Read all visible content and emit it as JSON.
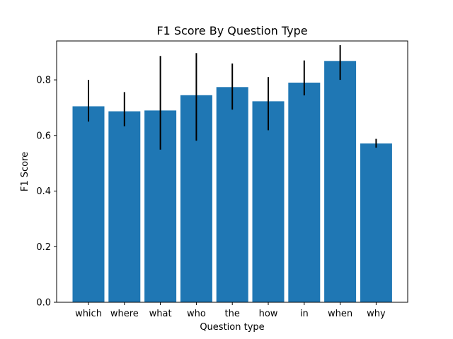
{
  "chart_data": {
    "type": "bar",
    "title": "F1 Score By Question Type",
    "xlabel": "Question type",
    "ylabel": "F1 Score",
    "categories": [
      "which",
      "where",
      "what",
      "who",
      "the",
      "how",
      "in",
      "when",
      "why"
    ],
    "values": [
      0.705,
      0.687,
      0.69,
      0.745,
      0.774,
      0.723,
      0.79,
      0.868,
      0.571
    ],
    "error_low": [
      0.65,
      0.633,
      0.549,
      0.581,
      0.693,
      0.619,
      0.744,
      0.8,
      0.556
    ],
    "error_high": [
      0.8,
      0.756,
      0.886,
      0.896,
      0.859,
      0.81,
      0.87,
      0.925,
      0.588
    ],
    "ylim": [
      0,
      0.94
    ],
    "yticks": [
      0.0,
      0.2,
      0.4,
      0.6,
      0.8
    ],
    "ytick_labels": [
      "0.0",
      "0.2",
      "0.4",
      "0.6",
      "0.8"
    ],
    "grid": false,
    "legend": "none",
    "colors": {
      "bar": "#1f77b4",
      "error_bar": "#000000",
      "axes": "#000000",
      "background": "#ffffff"
    }
  }
}
